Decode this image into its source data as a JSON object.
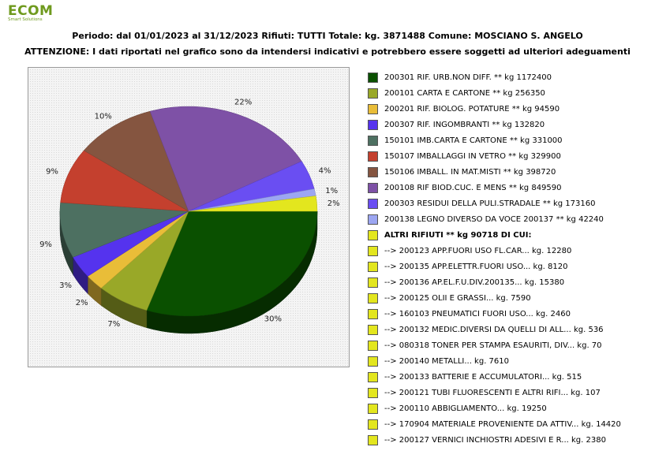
{
  "logo": {
    "name": "ECOM",
    "tagline": "Smart Solutions"
  },
  "header": {
    "period": "Periodo: dal 01/01/2023 al 31/12/2023 Rifiuti: TUTTI   Totale: kg. 3871488   Comune: MOSCIANO S. ANGELO",
    "notice": "ATTENZIONE: I dati riportati nel grafico sono da intendersi indicativi e potrebbero essere soggetti ad ulteriori adeguamenti"
  },
  "chart_data": {
    "type": "pie",
    "title": "",
    "slices": [
      {
        "label": "200301 RIF. URB.NON DIFF. ** kg 1172400",
        "value": 1172400,
        "pct_label": "30%",
        "color": "#0a5000"
      },
      {
        "label": "200101 CARTA E CARTONE ** kg 256350",
        "value": 256350,
        "pct_label": "7%",
        "color": "#99a828"
      },
      {
        "label": "200201 RIF. BIOLOG. POTATURE ** kg 94590",
        "value": 94590,
        "pct_label": "2%",
        "color": "#e9bd38"
      },
      {
        "label": "200307 RIF. INGOMBRANTI ** kg 132820",
        "value": 132820,
        "pct_label": "3%",
        "color": "#5533ee"
      },
      {
        "label": "150101 IMB.CARTA E CARTONE ** kg 331000",
        "value": 331000,
        "pct_label": "9%",
        "color": "#4d7061"
      },
      {
        "label": "150107 IMBALLAGGI IN VETRO ** kg 329900",
        "value": 329900,
        "pct_label": "9%",
        "color": "#c4402e"
      },
      {
        "label": "150106 IMBALL. IN MAT.MISTI ** kg 398720",
        "value": 398720,
        "pct_label": "10%",
        "color": "#855540"
      },
      {
        "label": "200108 RIF BIOD.CUC. E MENS ** kg 849590",
        "value": 849590,
        "pct_label": "22%",
        "color": "#7e51a6"
      },
      {
        "label": "200303 RESIDUI DELLA PULI.STRADALE ** kg 173160",
        "value": 173160,
        "pct_label": "4%",
        "color": "#6a4ef2"
      },
      {
        "label": "200138 LEGNO DIVERSO DA VOCE 200137 ** kg 42240",
        "value": 42240,
        "pct_label": "1%",
        "color": "#9ca6f2"
      },
      {
        "label": "ALTRI RIFIUTI ** kg 90718 DI CUI:",
        "value": 90718,
        "pct_label": "2%",
        "color": "#e3e61e"
      }
    ],
    "sub_items": [
      {
        "label": "-->  200123 APP.FUORI USO FL.CAR... kg. 12280",
        "value": 12280
      },
      {
        "label": "-->  200135 APP.ELETTR.FUORI USO... kg. 8120",
        "value": 8120
      },
      {
        "label": "-->  200136 AP.EL.F.U.DIV.200135... kg. 15380",
        "value": 15380
      },
      {
        "label": "-->  200125 OLII E GRASSI... kg. 7590",
        "value": 7590
      },
      {
        "label": "-->  160103 PNEUMATICI FUORI USO... kg. 2460",
        "value": 2460
      },
      {
        "label": "-->  200132 MEDIC.DIVERSI DA QUELLI DI ALL... kg. 536",
        "value": 536
      },
      {
        "label": "-->  080318 TONER PER STAMPA ESAURITI, DIV... kg. 70",
        "value": 70
      },
      {
        "label": "-->  200140 METALLI... kg. 7610",
        "value": 7610
      },
      {
        "label": "-->  200133 BATTERIE E ACCUMULATORI... kg. 515",
        "value": 515
      },
      {
        "label": "-->  200121 TUBI FLUORESCENTI E ALTRI RIFI... kg. 107",
        "value": 107
      },
      {
        "label": "-->  200110 ABBIGLIAMENTO... kg. 19250",
        "value": 19250
      },
      {
        "label": "-->  170904 MATERIALE PROVENIENTE DA ATTIV... kg. 14420",
        "value": 14420
      },
      {
        "label": "-->  200127 VERNICI INCHIOSTRI ADESIVI E R... kg. 2380",
        "value": 2380
      }
    ],
    "sub_item_color": "#e3e61e",
    "legend_position": "right",
    "grid": false
  }
}
